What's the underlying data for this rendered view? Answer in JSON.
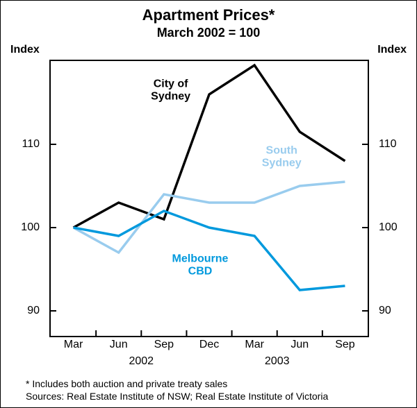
{
  "chart": {
    "type": "line",
    "title": "Apartment Prices*",
    "subtitle": "March 2002 = 100",
    "title_fontsize": 22,
    "subtitle_fontsize": 18,
    "axis_label_left": "Index",
    "axis_label_right": "Index",
    "axis_label_fontsize": 16,
    "background_color": "#ffffff",
    "border_color": "#000000",
    "tick_fontsize": 16,
    "x": {
      "categories": [
        "Mar",
        "Jun",
        "Sep",
        "Dec",
        "Mar",
        "Jun",
        "Sep"
      ],
      "year_labels": [
        {
          "text": "2002",
          "center_index": 1.5
        },
        {
          "text": "2003",
          "center_index": 4.5
        }
      ]
    },
    "y": {
      "min": 87,
      "max": 120,
      "ticks": [
        90,
        100,
        110
      ],
      "grid": false
    },
    "series": [
      {
        "name": "City of Sydney",
        "label": "City of\nSydney",
        "color": "#000000",
        "width": 3.5,
        "values": [
          100,
          103,
          101,
          116,
          119.5,
          111.5,
          108
        ],
        "label_pos": {
          "x_index": 2.15,
          "y_value": 116.5
        }
      },
      {
        "name": "South Sydney",
        "label": "South\nSydney",
        "color": "#99ccee",
        "width": 3.5,
        "values": [
          100,
          97,
          104,
          103,
          103,
          105,
          105.5
        ],
        "label_pos": {
          "x_index": 4.6,
          "y_value": 108.5
        }
      },
      {
        "name": "Melbourne CBD",
        "label": "Melbourne\nCBD",
        "color": "#0099dd",
        "width": 3.5,
        "values": [
          100,
          99,
          102,
          100,
          99,
          92.5,
          93
        ],
        "label_pos": {
          "x_index": 2.8,
          "y_value": 95.5
        }
      }
    ],
    "footnote": "*   Includes both auction and private treaty sales",
    "sources": "Sources: Real Estate Institute of NSW; Real Estate Institute of Victoria",
    "footnote_fontsize": 14
  }
}
